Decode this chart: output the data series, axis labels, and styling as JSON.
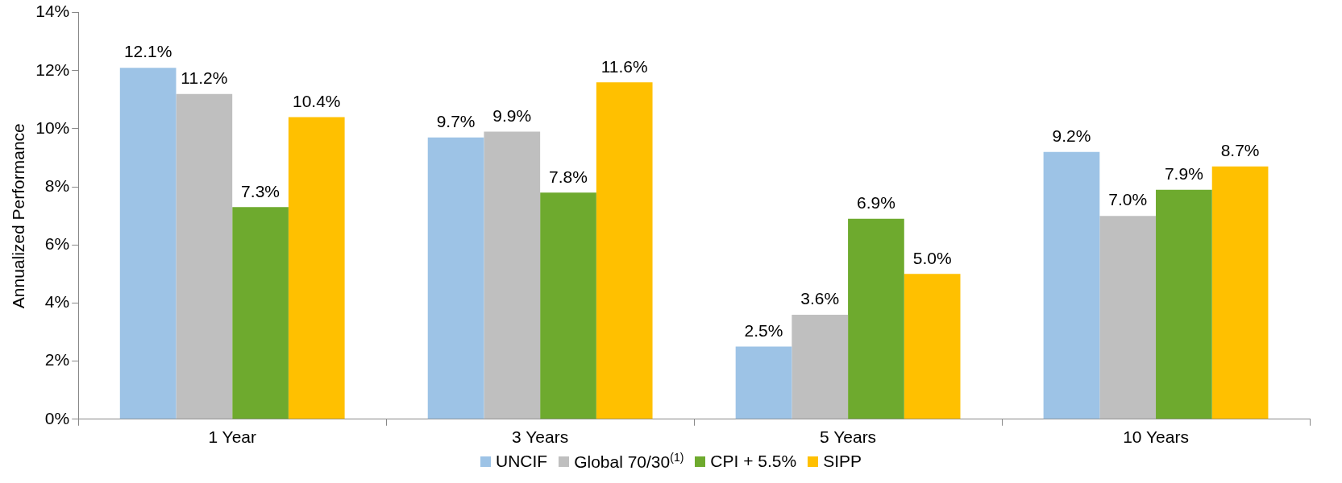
{
  "chart_data": {
    "type": "bar",
    "ylabel": "Annualized Performance",
    "categories": [
      "1 Year",
      "3 Years",
      "5 Years",
      "10 Years"
    ],
    "series": [
      {
        "name": "UNCIF",
        "color": "#9dc3e6",
        "values": [
          12.1,
          9.7,
          2.5,
          9.2
        ],
        "value_labels": [
          "12.1%",
          "9.7%",
          "2.5%",
          "9.2%"
        ]
      },
      {
        "name": "Global 70/30$^{(1)}$",
        "color": "#bfbfbf",
        "values": [
          11.2,
          9.9,
          3.6,
          7.0
        ],
        "value_labels": [
          "11.2%",
          "9.9%",
          "3.6%",
          "7.0%"
        ]
      },
      {
        "name": "CPI + 5.5%",
        "color": "#6eaa2e",
        "values": [
          7.3,
          7.8,
          6.9,
          7.9
        ],
        "value_labels": [
          "7.3%",
          "7.8%",
          "6.9%",
          "7.9%"
        ]
      },
      {
        "name": "SIPP",
        "color": "#ffc000",
        "values": [
          10.4,
          11.6,
          5.0,
          8.7
        ],
        "value_labels": [
          "10.4%",
          "11.6%",
          "5.0%",
          "8.7%"
        ]
      }
    ],
    "ylim": [
      0,
      14
    ],
    "yticks": [
      {
        "value": 0,
        "label": "0%"
      },
      {
        "value": 2,
        "label": "2%"
      },
      {
        "value": 4,
        "label": "4%"
      },
      {
        "value": 6,
        "label": "6%"
      },
      {
        "value": 8,
        "label": "8%"
      },
      {
        "value": 10,
        "label": "10%"
      },
      {
        "value": 12,
        "label": "12%"
      },
      {
        "value": 14,
        "label": "14%"
      }
    ],
    "grid": false,
    "legend": "bottom"
  }
}
